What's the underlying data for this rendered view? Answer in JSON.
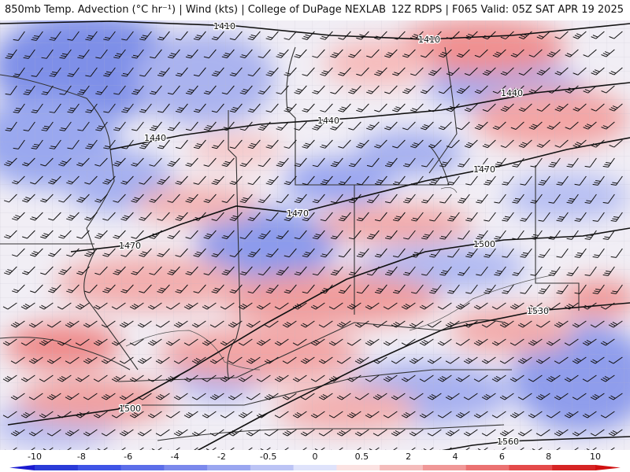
{
  "header": {
    "title": "850mb Temp. Advection (°C hr⁻¹) | Wind (kts) | College of DuPage NEXLAB",
    "run": "12Z RDPS | F065 Valid: 05Z SAT APR 19 2025"
  },
  "contours": [
    {
      "label": "1410",
      "labels_at": [
        [
          285,
          33
        ],
        [
          545,
          50
        ]
      ],
      "points": [
        [
          0,
          30
        ],
        [
          140,
          27
        ],
        [
          300,
          33
        ],
        [
          420,
          45
        ],
        [
          540,
          50
        ],
        [
          650,
          45
        ],
        [
          800,
          30
        ]
      ]
    },
    {
      "label": "1440",
      "labels_at": [
        [
          197,
          175
        ],
        [
          417,
          153
        ],
        [
          650,
          118
        ]
      ],
      "points": [
        [
          140,
          190
        ],
        [
          230,
          172
        ],
        [
          330,
          158
        ],
        [
          450,
          150
        ],
        [
          560,
          140
        ],
        [
          680,
          118
        ],
        [
          800,
          105
        ]
      ]
    },
    {
      "label": "1470",
      "labels_at": [
        [
          165,
          312
        ],
        [
          378,
          271
        ],
        [
          615,
          215
        ]
      ],
      "points": [
        [
          90,
          320
        ],
        [
          160,
          312
        ],
        [
          230,
          285
        ],
        [
          300,
          262
        ],
        [
          378,
          271
        ],
        [
          440,
          255
        ],
        [
          540,
          230
        ],
        [
          640,
          210
        ],
        [
          720,
          190
        ],
        [
          800,
          175
        ]
      ]
    },
    {
      "label": "1500",
      "labels_at": [
        [
          165,
          519
        ],
        [
          615,
          310
        ]
      ],
      "points": [
        [
          10,
          540
        ],
        [
          150,
          520
        ],
        [
          240,
          470
        ],
        [
          340,
          410
        ],
        [
          440,
          355
        ],
        [
          540,
          320
        ],
        [
          640,
          305
        ],
        [
          740,
          300
        ],
        [
          800,
          290
        ]
      ]
    },
    {
      "label": "1530",
      "labels_at": [
        [
          683,
          395
        ]
      ],
      "points": [
        [
          200,
          600
        ],
        [
          330,
          530
        ],
        [
          450,
          470
        ],
        [
          560,
          420
        ],
        [
          683,
          395
        ],
        [
          800,
          385
        ]
      ]
    },
    {
      "label": "1560",
      "labels_at": [
        [
          645,
          561
        ]
      ],
      "points": [
        [
          520,
          580
        ],
        [
          600,
          566
        ],
        [
          645,
          561
        ],
        [
          720,
          558
        ],
        [
          800,
          555
        ]
      ]
    }
  ],
  "colorbar": {
    "ticks": [
      "-10",
      "-8",
      "-6",
      "-4",
      "-2",
      "-0.5",
      "0",
      "0.5",
      "2",
      "4",
      "6",
      "8",
      "10"
    ],
    "colors": [
      "#2a3bd8",
      "#3f54e6",
      "#5c6ee9",
      "#7b89ec",
      "#9aa6f0",
      "#bcc4f5",
      "#dfe3fb",
      "#fbe2e2",
      "#f5bcbc",
      "#f09898",
      "#eb7272",
      "#e44a4a",
      "#d62424"
    ]
  }
}
